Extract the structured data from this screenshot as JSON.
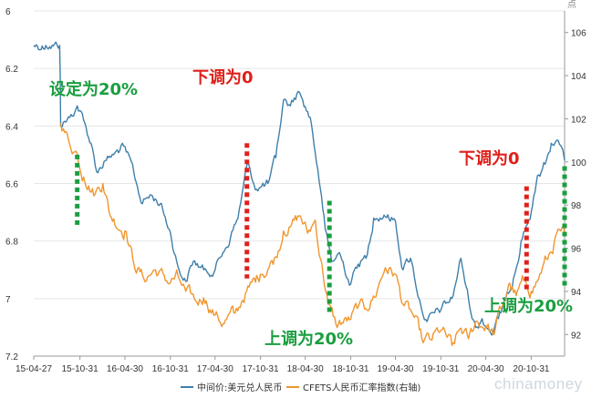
{
  "chart_data": {
    "type": "line",
    "unit_right": "点",
    "watermark": "chinamoney",
    "x_tick_labels": [
      "15-04-27",
      "15-10-31",
      "16-04-30",
      "16-10-31",
      "17-04-30",
      "17-10-31",
      "18-04-30",
      "18-10-31",
      "19-04-30",
      "19-10-31",
      "20-04-30",
      "20-10-31"
    ],
    "x_tick_dates": [
      "2015-04-27",
      "2015-10-31",
      "2016-04-30",
      "2016-10-31",
      "2017-04-30",
      "2017-10-31",
      "2018-04-30",
      "2018-10-31",
      "2019-04-30",
      "2019-10-31",
      "2020-04-30",
      "2020-10-31"
    ],
    "x_range": [
      "2015-04-27",
      "2021-03-15"
    ],
    "y_left": {
      "ticks": [
        "6",
        "6.2",
        "6.4",
        "6.6",
        "6.8",
        "7",
        "7.2"
      ],
      "range": [
        6.0,
        7.2
      ],
      "inverted": true
    },
    "y_right": {
      "ticks": [
        "106",
        "104",
        "102",
        "100",
        "98",
        "96",
        "94",
        "92"
      ],
      "range": [
        91.0,
        107.0
      ]
    },
    "series": [
      {
        "name": "中间价:美元兑人民币",
        "axis": "left",
        "color": "#3f7fab",
        "points": [
          [
            "2015-04-27",
            6.12
          ],
          [
            "2015-06-15",
            6.12
          ],
          [
            "2015-08-10",
            6.12
          ],
          [
            "2015-08-12",
            6.22
          ],
          [
            "2015-08-14",
            6.4
          ],
          [
            "2015-09-20",
            6.37
          ],
          [
            "2015-10-20",
            6.33
          ],
          [
            "2015-11-15",
            6.38
          ],
          [
            "2015-12-15",
            6.46
          ],
          [
            "2016-01-07",
            6.56
          ],
          [
            "2016-02-10",
            6.52
          ],
          [
            "2016-03-15",
            6.5
          ],
          [
            "2016-04-25",
            6.47
          ],
          [
            "2016-06-05",
            6.56
          ],
          [
            "2016-07-10",
            6.67
          ],
          [
            "2016-08-15",
            6.64
          ],
          [
            "2016-09-20",
            6.67
          ],
          [
            "2016-10-31",
            6.77
          ],
          [
            "2016-12-01",
            6.89
          ],
          [
            "2017-01-01",
            6.94
          ],
          [
            "2017-02-01",
            6.87
          ],
          [
            "2017-03-15",
            6.9
          ],
          [
            "2017-04-30",
            6.9
          ],
          [
            "2017-06-01",
            6.84
          ],
          [
            "2017-07-01",
            6.79
          ],
          [
            "2017-08-01",
            6.72
          ],
          [
            "2017-09-08",
            6.53
          ],
          [
            "2017-10-15",
            6.62
          ],
          [
            "2017-11-30",
            6.6
          ],
          [
            "2018-01-01",
            6.51
          ],
          [
            "2018-02-01",
            6.31
          ],
          [
            "2018-03-01",
            6.33
          ],
          [
            "2018-04-01",
            6.28
          ],
          [
            "2018-04-20",
            6.31
          ],
          [
            "2018-05-20",
            6.37
          ],
          [
            "2018-06-20",
            6.55
          ],
          [
            "2018-07-20",
            6.76
          ],
          [
            "2018-08-15",
            6.87
          ],
          [
            "2018-09-15",
            6.84
          ],
          [
            "2018-10-31",
            6.95
          ],
          [
            "2018-11-30",
            6.88
          ],
          [
            "2019-01-01",
            6.86
          ],
          [
            "2019-02-01",
            6.72
          ],
          [
            "2019-03-15",
            6.71
          ],
          [
            "2019-04-30",
            6.73
          ],
          [
            "2019-05-31",
            6.9
          ],
          [
            "2019-06-30",
            6.86
          ],
          [
            "2019-08-10",
            7.02
          ],
          [
            "2019-09-05",
            7.08
          ],
          [
            "2019-10-31",
            7.04
          ],
          [
            "2019-12-15",
            7.0
          ],
          [
            "2020-01-20",
            6.86
          ],
          [
            "2020-02-20",
            7.0
          ],
          [
            "2020-03-20",
            7.1
          ],
          [
            "2020-04-15",
            7.07
          ],
          [
            "2020-05-29",
            7.12
          ],
          [
            "2020-06-20",
            7.07
          ],
          [
            "2020-07-20",
            7.0
          ],
          [
            "2020-08-20",
            6.93
          ],
          [
            "2020-09-20",
            6.8
          ],
          [
            "2020-10-31",
            6.7
          ],
          [
            "2020-11-30",
            6.57
          ],
          [
            "2020-12-31",
            6.52
          ],
          [
            "2021-01-20",
            6.46
          ],
          [
            "2021-02-10",
            6.45
          ],
          [
            "2021-03-01",
            6.47
          ],
          [
            "2021-03-15",
            6.52
          ]
        ]
      },
      {
        "name": "CFETS人民币汇率指数(右轴)",
        "axis": "right",
        "color": "#f0962e",
        "points": [
          [
            "2015-08-14",
            101.8
          ],
          [
            "2015-09-15",
            101.0
          ],
          [
            "2015-10-15",
            100.5
          ],
          [
            "2015-11-15",
            99.3
          ],
          [
            "2015-12-31",
            98.5
          ],
          [
            "2016-02-01",
            99.0
          ],
          [
            "2016-03-01",
            97.5
          ],
          [
            "2016-04-30",
            96.8
          ],
          [
            "2016-06-01",
            95.5
          ],
          [
            "2016-07-15",
            94.6
          ],
          [
            "2016-09-01",
            95.0
          ],
          [
            "2016-10-31",
            94.4
          ],
          [
            "2016-12-01",
            94.7
          ],
          [
            "2017-01-01",
            94.0
          ],
          [
            "2017-02-15",
            93.5
          ],
          [
            "2017-03-15",
            93.7
          ],
          [
            "2017-04-30",
            92.9
          ],
          [
            "2017-06-01",
            92.5
          ],
          [
            "2017-07-15",
            93.0
          ],
          [
            "2017-08-15",
            93.5
          ],
          [
            "2017-09-15",
            94.2
          ],
          [
            "2017-10-31",
            94.8
          ],
          [
            "2017-11-30",
            95.0
          ],
          [
            "2018-01-01",
            95.6
          ],
          [
            "2018-02-01",
            96.8
          ],
          [
            "2018-03-01",
            97.0
          ],
          [
            "2018-04-10",
            97.5
          ],
          [
            "2018-05-10",
            96.7
          ],
          [
            "2018-06-10",
            97.3
          ],
          [
            "2018-07-01",
            95.5
          ],
          [
            "2018-08-01",
            93.4
          ],
          [
            "2018-09-01",
            92.5
          ],
          [
            "2018-10-31",
            92.7
          ],
          [
            "2018-12-01",
            93.3
          ],
          [
            "2019-01-01",
            93.2
          ],
          [
            "2019-02-15",
            94.0
          ],
          [
            "2019-03-20",
            95.1
          ],
          [
            "2019-04-30",
            94.8
          ],
          [
            "2019-05-31",
            93.4
          ],
          [
            "2019-07-15",
            92.8
          ],
          [
            "2019-08-15",
            91.8
          ],
          [
            "2019-09-15",
            91.8
          ],
          [
            "2019-10-31",
            92.2
          ],
          [
            "2019-12-15",
            91.5
          ],
          [
            "2020-01-20",
            92.3
          ],
          [
            "2020-02-20",
            91.8
          ],
          [
            "2020-03-20",
            92.6
          ],
          [
            "2020-04-30",
            92.4
          ],
          [
            "2020-05-29",
            92.0
          ],
          [
            "2020-06-30",
            93.2
          ],
          [
            "2020-07-31",
            94.3
          ],
          [
            "2020-08-31",
            93.8
          ],
          [
            "2020-09-30",
            94.5
          ],
          [
            "2020-10-31",
            94.0
          ],
          [
            "2020-11-30",
            94.6
          ],
          [
            "2020-12-31",
            95.5
          ],
          [
            "2021-01-31",
            96.2
          ],
          [
            "2021-02-28",
            96.8
          ],
          [
            "2021-03-15",
            96.7
          ]
        ]
      }
    ],
    "markers": [
      {
        "label": "设定为20%",
        "date": "2015-10-20",
        "color": "#1a9e3f",
        "y_from": 6.5,
        "y_to": 6.75
      },
      {
        "label": "下调为0",
        "date": "2017-09-06",
        "color": "#e0201b",
        "y_from": 6.46,
        "y_to": 6.93
      },
      {
        "label": "上调为20%",
        "date": "2018-08-06",
        "color": "#1a9e3f",
        "y_from": 6.66,
        "y_to": 7.05
      },
      {
        "label": "下调为0",
        "date": "2020-10-12",
        "color": "#e0201b",
        "y_from": 6.61,
        "y_to": 6.97
      },
      {
        "label": "上调为20%",
        "date": "2021-03-15",
        "color": "#1a9e3f",
        "y_from": 6.54,
        "y_to": 6.96
      }
    ]
  }
}
